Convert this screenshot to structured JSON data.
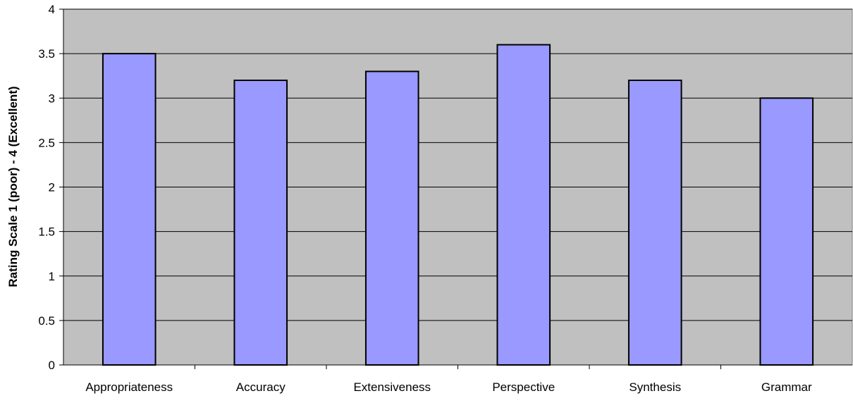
{
  "chart_data": {
    "type": "bar",
    "title": "",
    "xlabel": "",
    "ylabel": "Rating Scale 1 (poor) - 4 (Excellent)",
    "categories": [
      "Appropriateness",
      "Accuracy",
      "Extensiveness",
      "Perspective",
      "Synthesis",
      "Grammar"
    ],
    "values": [
      3.5,
      3.2,
      3.3,
      3.6,
      3.2,
      3.0
    ],
    "ylim": [
      0,
      4
    ],
    "yticks": [
      0,
      0.5,
      1,
      1.5,
      2,
      2.5,
      3,
      3.5,
      4
    ],
    "ytick_labels": [
      "0",
      "0.5",
      "1",
      "1.5",
      "2",
      "2.5",
      "3",
      "3.5",
      "4"
    ],
    "grid": true,
    "legend": "none",
    "colors": {
      "plot_background": "#c0c0c0",
      "bar_fill": "#9999ff",
      "bar_stroke": "#000000",
      "gridline": "#000000"
    }
  }
}
